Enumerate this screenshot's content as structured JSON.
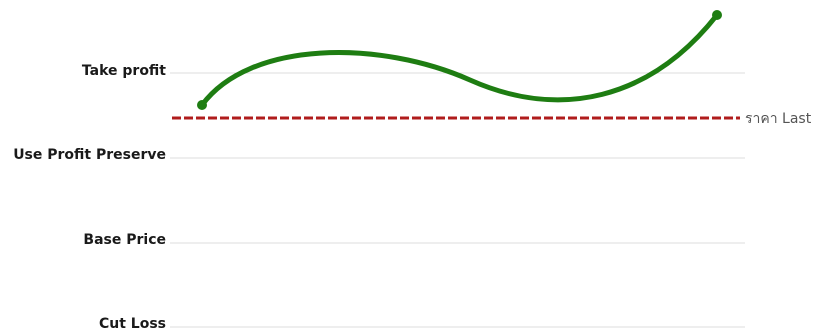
{
  "levels": [
    {
      "key": "take_profit",
      "label": "Take profit"
    },
    {
      "key": "use_profit_preserve",
      "label": "Use Profit Preserve"
    },
    {
      "key": "base_price",
      "label": "Base Price"
    },
    {
      "key": "cut_loss",
      "label": "Cut Loss"
    }
  ],
  "last_price": {
    "label": "ราคา Last"
  },
  "colors": {
    "price_curve": "#1e7d12",
    "last_price_line": "#b01c1c",
    "level_line": "#dcdcdc",
    "label_text": "#1a1a1a"
  }
}
